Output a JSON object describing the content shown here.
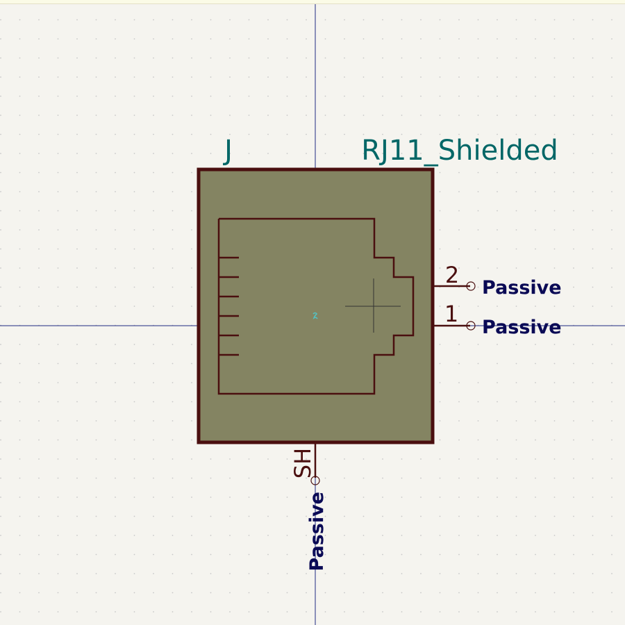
{
  "symbol": {
    "reference": "J",
    "value": "RJ11_Shielded",
    "pins": [
      {
        "number": "2",
        "type": "Passive"
      },
      {
        "number": "1",
        "type": "Passive"
      }
    ],
    "shield_pin": {
      "name": "SH",
      "type": "Passive"
    }
  },
  "colors": {
    "background": "#f5f4ef",
    "body_fill": "#848462",
    "outline": "#4a0f0f",
    "field_text": "#006666",
    "pin_type_text": "#0a0a55",
    "axis": "#1f2a80",
    "anchor": "#55c0c0"
  }
}
